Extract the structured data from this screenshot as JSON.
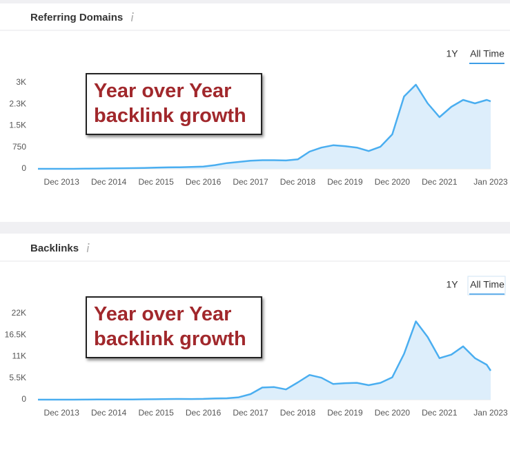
{
  "chart_data": [
    {
      "type": "area",
      "title": "Referring Domains",
      "controls": [
        "1Y",
        "All Time"
      ],
      "annotation": "Year over Year backlink growth",
      "x": [
        "Jun 2013",
        "Sep 2013",
        "Dec 2013",
        "Mar 2014",
        "Jun 2014",
        "Sep 2014",
        "Dec 2014",
        "Mar 2015",
        "Jun 2015",
        "Sep 2015",
        "Dec 2015",
        "Mar 2016",
        "Jun 2016",
        "Sep 2016",
        "Dec 2016",
        "Mar 2017",
        "Jun 2017",
        "Sep 2017",
        "Dec 2017",
        "Mar 2018",
        "Jun 2018",
        "Sep 2018",
        "Dec 2018",
        "Mar 2019",
        "Jun 2019",
        "Sep 2019",
        "Dec 2019",
        "Mar 2020",
        "Jun 2020",
        "Sep 2020",
        "Dec 2020",
        "Mar 2021",
        "Jun 2021",
        "Sep 2021",
        "Dec 2021",
        "Mar 2022",
        "Jun 2022",
        "Sep 2022",
        "Dec 2022",
        "Jan 2023"
      ],
      "values": [
        0,
        0,
        0,
        0,
        5,
        10,
        15,
        20,
        25,
        30,
        40,
        50,
        55,
        65,
        80,
        130,
        200,
        240,
        280,
        300,
        300,
        290,
        330,
        600,
        740,
        820,
        790,
        740,
        620,
        770,
        1200,
        2520,
        2930,
        2280,
        1800,
        2160,
        2400,
        2280,
        2400,
        2350
      ],
      "color": "#4aaef0",
      "fill_color": "#ddeefb",
      "xlim": [
        "Jun 2013",
        "Jan 2023"
      ],
      "xticks": [
        "Dec 2013",
        "Dec 2014",
        "Dec 2015",
        "Dec 2016",
        "Dec 2017",
        "Dec 2018",
        "Dec 2019",
        "Dec 2020",
        "Dec 2021",
        "Jan 2023"
      ],
      "ylim": [
        0,
        3000
      ],
      "yticks": [
        0,
        750,
        {
          "value": 1500,
          "label": "1.5K"
        },
        {
          "value": 2250,
          "label": "2.3K"
        },
        {
          "value": 3000,
          "label": "3K"
        }
      ]
    },
    {
      "type": "area",
      "title": "Backlinks",
      "controls": [
        "1Y",
        "All Time"
      ],
      "annotation": "Year over Year backlink growth",
      "x": [
        "Jun 2013",
        "Sep 2013",
        "Dec 2013",
        "Mar 2014",
        "Jun 2014",
        "Sep 2014",
        "Dec 2014",
        "Mar 2015",
        "Jun 2015",
        "Sep 2015",
        "Dec 2015",
        "Mar 2016",
        "Jun 2016",
        "Sep 2016",
        "Dec 2016",
        "Mar 2017",
        "Jun 2017",
        "Sep 2017",
        "Dec 2017",
        "Mar 2018",
        "Jun 2018",
        "Sep 2018",
        "Dec 2018",
        "Mar 2019",
        "Jun 2019",
        "Sep 2019",
        "Dec 2019",
        "Mar 2020",
        "Jun 2020",
        "Sep 2020",
        "Dec 2020",
        "Mar 2021",
        "Jun 2021",
        "Sep 2021",
        "Dec 2021",
        "Mar 2022",
        "Jun 2022",
        "Sep 2022",
        "Dec 2022",
        "Jan 2023"
      ],
      "values": [
        0,
        0,
        0,
        0,
        20,
        30,
        40,
        50,
        60,
        80,
        100,
        150,
        180,
        150,
        200,
        300,
        350,
        600,
        1400,
        3100,
        3200,
        2600,
        4400,
        6300,
        5600,
        4000,
        4200,
        4300,
        3700,
        4300,
        5700,
        11700,
        20000,
        16000,
        10600,
        11500,
        13600,
        10600,
        8900,
        7400
      ],
      "color": "#4aaef0",
      "fill_color": "#ddeefb",
      "xlim": [
        "Jun 2013",
        "Jan 2023"
      ],
      "xticks": [
        "Dec 2013",
        "Dec 2014",
        "Dec 2015",
        "Dec 2016",
        "Dec 2017",
        "Dec 2018",
        "Dec 2019",
        "Dec 2020",
        "Dec 2021",
        "Jan 2023"
      ],
      "ylim": [
        0,
        22000
      ],
      "yticks": [
        0,
        {
          "value": 5500,
          "label": "5.5K"
        },
        {
          "value": 11000,
          "label": "11K"
        },
        {
          "value": 16500,
          "label": "16.5K"
        },
        {
          "value": 22000,
          "label": "22K"
        }
      ]
    }
  ]
}
